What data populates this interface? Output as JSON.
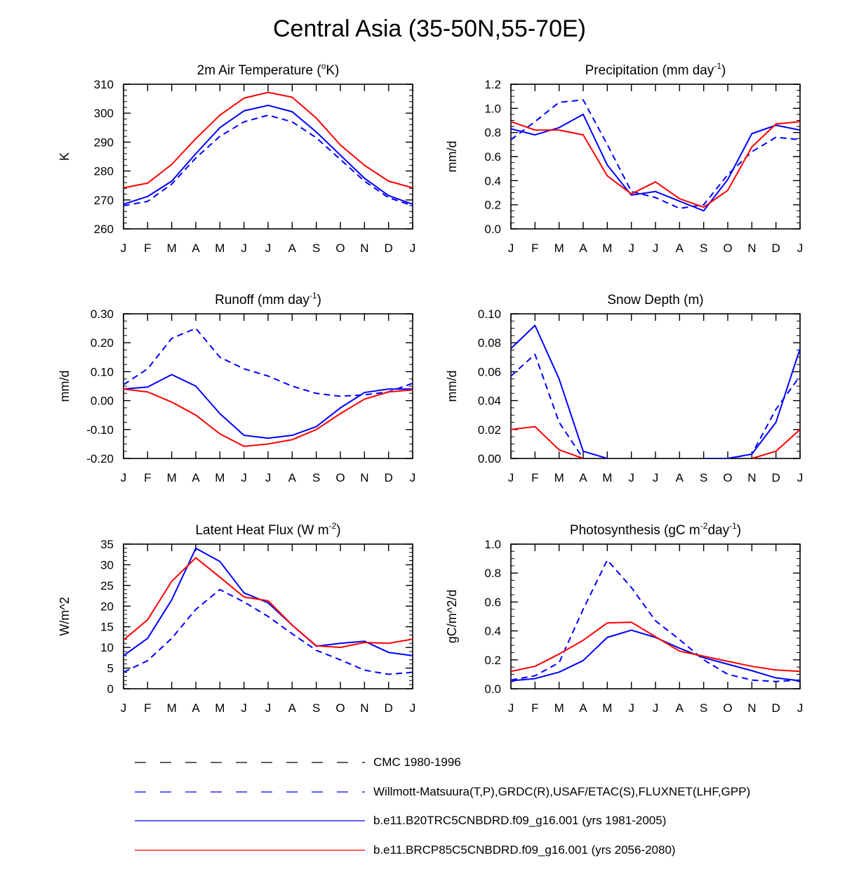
{
  "title": "Central Asia (35-50N,55-70E)",
  "colors": {
    "cmc": "#000000",
    "obs": "#0000ff",
    "b20": "#0000ff",
    "rcp85": "#ff0000"
  },
  "months": [
    "J",
    "F",
    "M",
    "A",
    "M",
    "J",
    "J",
    "A",
    "S",
    "O",
    "N",
    "D",
    "J"
  ],
  "legend": [
    {
      "label": "CMC 1980-1996",
      "color": "#000000",
      "dash": "dashed"
    },
    {
      "label": "Willmott-Matsuura(T,P),GRDC(R),USAF/ETAC(S),FLUXNET(LHF,GPP)",
      "color": "#0000ff",
      "dash": "dashed"
    },
    {
      "label": "b.e11.B20TRC5CNBDRD.f09_g16.001 (yrs 1981-2005)",
      "color": "#0000ff",
      "dash": "solid"
    },
    {
      "label": "b.e11.BRCP85C5CNBDRD.f09_g16.001 (yrs 2056-2080)",
      "color": "#ff0000",
      "dash": "solid"
    }
  ],
  "chart_data": [
    {
      "type": "line",
      "title": "2m Air Temperature (",
      "title_sup": "o",
      "title_tail": "K)",
      "ylabel": "K",
      "ylim": [
        260,
        310
      ],
      "yticks": [
        260,
        270,
        280,
        290,
        300,
        310
      ],
      "ytick_labels": [
        "260",
        "270",
        "280",
        "290",
        "300",
        "310"
      ],
      "ytick_minor": 2,
      "x": [
        "J",
        "F",
        "M",
        "A",
        "M",
        "J",
        "J",
        "A",
        "S",
        "O",
        "N",
        "D",
        "J"
      ],
      "series": [
        {
          "key": "obs",
          "dash": "dashed",
          "values": [
            268,
            269.5,
            275.5,
            284.5,
            292,
            297,
            299.3,
            297,
            291.5,
            284,
            276.5,
            270.8,
            268
          ]
        },
        {
          "key": "b20",
          "dash": "solid",
          "values": [
            268.5,
            271.2,
            276.5,
            286,
            295,
            300.8,
            302.7,
            300.5,
            293.5,
            285.5,
            277.5,
            271.5,
            268.5
          ]
        },
        {
          "key": "rcp85",
          "dash": "solid",
          "values": [
            274.2,
            275.8,
            282.3,
            291.2,
            299.3,
            305.2,
            307.2,
            305.5,
            298.3,
            289,
            282,
            276.5,
            274.2
          ]
        }
      ]
    },
    {
      "type": "line",
      "title": "Precipitation (mm day",
      "title_sup": "-1",
      "title_tail": ")",
      "ylabel": "mm/d",
      "ylim": [
        0,
        1.2
      ],
      "yticks": [
        0,
        0.2,
        0.4,
        0.6,
        0.8,
        1.0,
        1.2
      ],
      "ytick_labels": [
        "0.0",
        "0.2",
        "0.4",
        "0.6",
        "0.8",
        "1.0",
        "1.2"
      ],
      "ytick_minor": 0.05,
      "x": [
        "J",
        "F",
        "M",
        "A",
        "M",
        "J",
        "J",
        "A",
        "S",
        "O",
        "N",
        "D",
        "J"
      ],
      "series": [
        {
          "key": "obs",
          "dash": "dashed",
          "values": [
            0.74,
            0.89,
            1.05,
            1.07,
            0.7,
            0.31,
            0.26,
            0.17,
            0.2,
            0.45,
            0.64,
            0.76,
            0.74
          ]
        },
        {
          "key": "b20",
          "dash": "solid",
          "values": [
            0.83,
            0.78,
            0.84,
            0.95,
            0.53,
            0.28,
            0.31,
            0.23,
            0.15,
            0.41,
            0.79,
            0.86,
            0.82
          ]
        },
        {
          "key": "rcp85",
          "dash": "solid",
          "values": [
            0.89,
            0.82,
            0.82,
            0.78,
            0.44,
            0.29,
            0.39,
            0.25,
            0.18,
            0.32,
            0.68,
            0.87,
            0.89
          ]
        }
      ]
    },
    {
      "type": "line",
      "title": "Runoff (mm day",
      "title_sup": "-1",
      "title_tail": ")",
      "ylabel": "mm/d",
      "ylim": [
        -0.2,
        0.3
      ],
      "yticks": [
        -0.2,
        -0.1,
        0,
        0.1,
        0.2,
        0.3
      ],
      "ytick_labels": [
        "-0.20",
        "-0.10",
        "0.00",
        "0.10",
        "0.20",
        "0.30"
      ],
      "ytick_minor": 0.025,
      "x": [
        "J",
        "F",
        "M",
        "A",
        "M",
        "J",
        "J",
        "A",
        "S",
        "O",
        "N",
        "D",
        "J"
      ],
      "series": [
        {
          "key": "obs",
          "dash": "dashed",
          "values": [
            0.055,
            0.11,
            0.215,
            0.25,
            0.15,
            0.11,
            0.085,
            0.05,
            0.025,
            0.015,
            0.02,
            0.03,
            0.06
          ]
        },
        {
          "key": "b20",
          "dash": "solid",
          "values": [
            0.04,
            0.047,
            0.09,
            0.05,
            -0.045,
            -0.12,
            -0.13,
            -0.12,
            -0.09,
            -0.025,
            0.028,
            0.04,
            0.04
          ]
        },
        {
          "key": "rcp85",
          "dash": "solid",
          "values": [
            0.04,
            0.03,
            -0.005,
            -0.05,
            -0.115,
            -0.158,
            -0.15,
            -0.135,
            -0.1,
            -0.045,
            0.005,
            0.03,
            0.037
          ]
        }
      ]
    },
    {
      "type": "line",
      "title": "Snow Depth (m)",
      "title_sup": "",
      "title_tail": "",
      "ylabel": "mm/d",
      "ylim": [
        0,
        0.1
      ],
      "yticks": [
        0,
        0.02,
        0.04,
        0.06,
        0.08,
        0.1
      ],
      "ytick_labels": [
        "0.00",
        "0.02",
        "0.04",
        "0.06",
        "0.08",
        "0.10"
      ],
      "ytick_minor": 0.005,
      "x": [
        "J",
        "F",
        "M",
        "A",
        "M",
        "J",
        "J",
        "A",
        "S",
        "O",
        "N",
        "D",
        "J"
      ],
      "series": [
        {
          "key": "obs",
          "dash": "dashed",
          "values": [
            0.057,
            0.072,
            0.025,
            0.0,
            null,
            null,
            null,
            null,
            null,
            0.0,
            0.003,
            0.034,
            0.057
          ]
        },
        {
          "key": "b20",
          "dash": "solid",
          "values": [
            0.076,
            0.092,
            0.055,
            0.005,
            0.0,
            null,
            null,
            null,
            0.0,
            0.0,
            0.003,
            0.025,
            0.076
          ]
        },
        {
          "key": "rcp85",
          "dash": "solid",
          "values": [
            0.02,
            0.022,
            0.006,
            0.0,
            null,
            null,
            null,
            null,
            null,
            null,
            0.0,
            0.005,
            0.02
          ]
        }
      ]
    },
    {
      "type": "line",
      "title": "Latent Heat Flux (W m",
      "title_sup": "-2",
      "title_tail": ")",
      "ylabel": "W/m^2",
      "ylim": [
        0,
        35
      ],
      "yticks": [
        0,
        5,
        10,
        15,
        20,
        25,
        30,
        35
      ],
      "ytick_labels": [
        "0",
        "5",
        "10",
        "15",
        "20",
        "25",
        "30",
        "35"
      ],
      "ytick_minor": 1,
      "x": [
        "J",
        "F",
        "M",
        "A",
        "M",
        "J",
        "J",
        "A",
        "S",
        "O",
        "N",
        "D",
        "J"
      ],
      "series": [
        {
          "key": "obs",
          "dash": "dashed",
          "values": [
            4,
            6.8,
            12.2,
            19.2,
            24,
            21,
            17.5,
            13.3,
            9.3,
            7,
            4.5,
            3.5,
            4
          ]
        },
        {
          "key": "b20",
          "dash": "solid",
          "values": [
            8,
            12.2,
            21.5,
            34,
            30.8,
            23.2,
            20.8,
            15.4,
            10.3,
            11,
            11.5,
            8.8,
            8
          ]
        },
        {
          "key": "rcp85",
          "dash": "solid",
          "values": [
            11.8,
            16.7,
            26,
            31.7,
            27,
            22.2,
            21.3,
            15.4,
            10.4,
            10,
            11.2,
            11,
            12
          ]
        }
      ]
    },
    {
      "type": "line",
      "title": "Photosynthesis (gC m",
      "title_sup": "-2",
      "title_tail": "day",
      "title_sup2": "-1",
      "title_tail2": ")",
      "ylabel": "gC/m^2/d",
      "ylim": [
        0,
        1.0
      ],
      "yticks": [
        0,
        0.2,
        0.4,
        0.6,
        0.8,
        1.0
      ],
      "ytick_labels": [
        "0.0",
        "0.2",
        "0.4",
        "0.6",
        "0.8",
        "1.0"
      ],
      "ytick_minor": 0.05,
      "x": [
        "J",
        "F",
        "M",
        "A",
        "M",
        "J",
        "J",
        "A",
        "S",
        "O",
        "N",
        "D",
        "J"
      ],
      "series": [
        {
          "key": "obs",
          "dash": "dashed",
          "values": [
            0.06,
            0.09,
            0.18,
            0.55,
            0.89,
            0.7,
            0.47,
            0.34,
            0.2,
            0.1,
            0.06,
            0.05,
            0.06
          ]
        },
        {
          "key": "b20",
          "dash": "solid",
          "values": [
            0.055,
            0.07,
            0.115,
            0.195,
            0.355,
            0.405,
            0.355,
            0.28,
            0.215,
            0.17,
            0.125,
            0.075,
            0.055
          ]
        },
        {
          "key": "rcp85",
          "dash": "solid",
          "values": [
            0.12,
            0.155,
            0.24,
            0.335,
            0.455,
            0.46,
            0.36,
            0.26,
            0.225,
            0.19,
            0.155,
            0.13,
            0.12
          ]
        }
      ]
    }
  ]
}
